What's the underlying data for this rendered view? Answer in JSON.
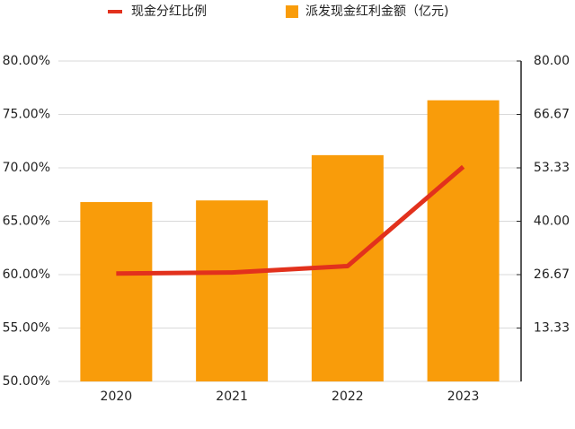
{
  "chart_data": {
    "type": "bar_line",
    "categories": [
      "2020",
      "2021",
      "2022",
      "2023"
    ],
    "series": [
      {
        "name": "现金分红比例",
        "color": "#e2311d",
        "type": "line",
        "axis": "y",
        "values": [
          60.1,
          60.2,
          60.8,
          70.1
        ]
      },
      {
        "name": "派发现金红利金额（亿元)",
        "color": "#f99c0a",
        "type": "bar",
        "axis": "y2",
        "values": [
          44.8,
          45.2,
          56.5,
          70.2
        ]
      }
    ],
    "ylim": [
      50,
      80
    ],
    "yticks": [
      {
        "value": 50,
        "label": "50.00%"
      },
      {
        "value": 55,
        "label": "55.00%"
      },
      {
        "value": 60,
        "label": "60.00%"
      },
      {
        "value": 65,
        "label": "65.00%"
      },
      {
        "value": 70,
        "label": "70.00%"
      },
      {
        "value": 75,
        "label": "75.00%"
      },
      {
        "value": 80,
        "label": "80.00%"
      }
    ],
    "y2lim": [
      0,
      80
    ],
    "y2ticks": [
      {
        "value": 13.33,
        "label": "13.33"
      },
      {
        "value": 26.67,
        "label": "26.67"
      },
      {
        "value": 40,
        "label": "40.00"
      },
      {
        "value": 53.33,
        "label": "53.33"
      },
      {
        "value": 66.67,
        "label": "66.67"
      },
      {
        "value": 80,
        "label": "80.00"
      }
    ],
    "grid": true
  }
}
